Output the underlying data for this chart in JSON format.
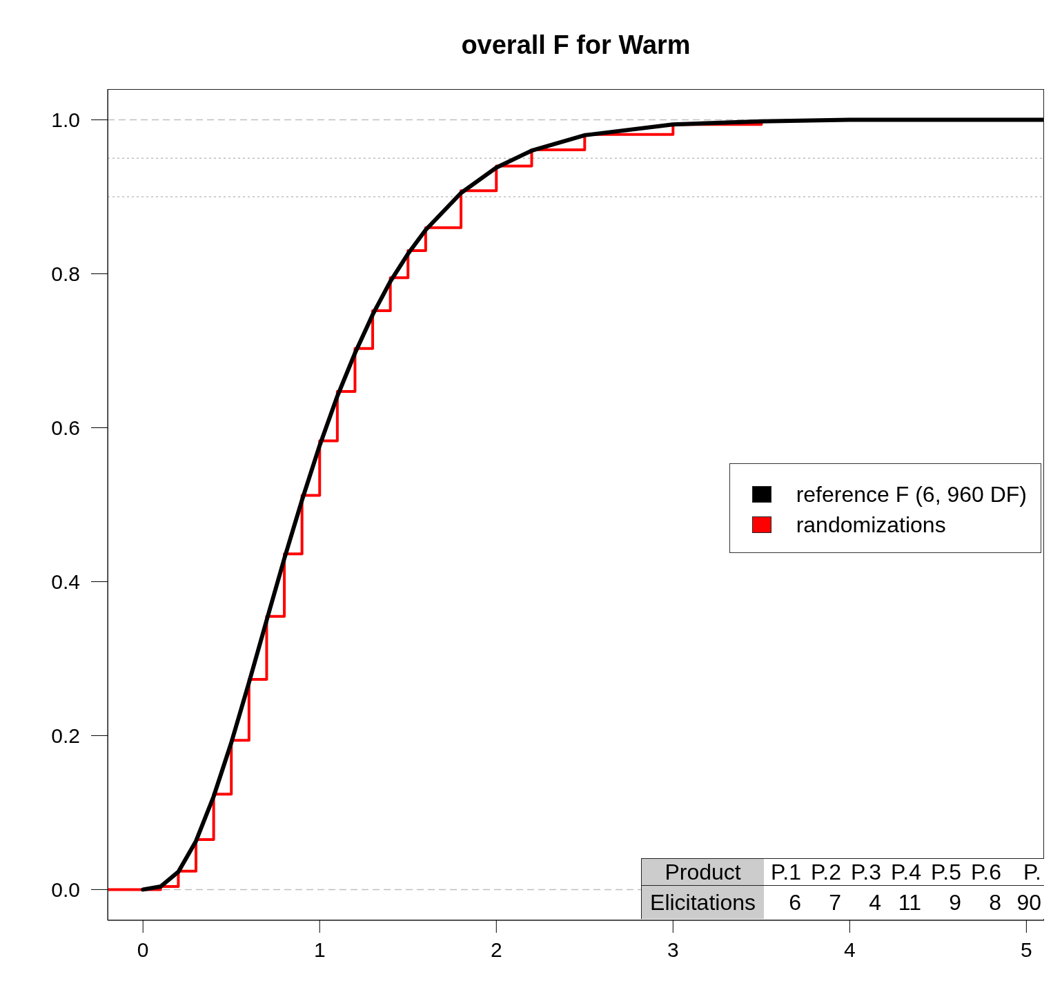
{
  "chart_data": {
    "type": "line",
    "title": "overall F for Warm",
    "xlim": [
      -0.2,
      5.1
    ],
    "xticks": [
      0,
      1,
      2,
      3,
      4,
      5
    ],
    "ylim": [
      -0.04,
      1.04
    ],
    "yticks": [
      {
        "value": 0,
        "label": "0.0"
      },
      {
        "value": 0.2,
        "label": "0.2"
      },
      {
        "value": 0.4,
        "label": "0.4"
      },
      {
        "value": 0.6,
        "label": "0.6"
      },
      {
        "value": 0.8,
        "label": "0.8"
      },
      {
        "value": 1,
        "label": "1.0"
      }
    ],
    "series": [
      {
        "name": "randomizations",
        "type": "step",
        "color": "#ff0000",
        "x": [
          -0.2,
          0,
          0.1,
          0.2,
          0.3,
          0.4,
          0.5,
          0.6,
          0.7,
          0.8,
          0.9,
          1.0,
          1.1,
          1.2,
          1.3,
          1.4,
          1.5,
          1.6,
          1.8,
          2.0,
          2.2,
          2.5,
          3.0,
          3.5
        ],
        "values": [
          0,
          0,
          0.004,
          0.024,
          0.065,
          0.124,
          0.194,
          0.273,
          0.355,
          0.436,
          0.512,
          0.583,
          0.647,
          0.703,
          0.752,
          0.795,
          0.83,
          0.86,
          0.908,
          0.94,
          0.961,
          0.981,
          0.994,
          0.998
        ]
      },
      {
        "name": "reference F (6, 960 DF)",
        "type": "line",
        "color": "#000000",
        "x": [
          0,
          0.1,
          0.2,
          0.3,
          0.4,
          0.5,
          0.6,
          0.7,
          0.8,
          0.9,
          1.0,
          1.1,
          1.2,
          1.3,
          1.4,
          1.5,
          1.6,
          1.8,
          2.0,
          2.2,
          2.5,
          3.0,
          3.5,
          4.0,
          5.1
        ],
        "values": [
          0,
          0.004,
          0.023,
          0.063,
          0.121,
          0.191,
          0.269,
          0.35,
          0.43,
          0.506,
          0.577,
          0.641,
          0.697,
          0.747,
          0.79,
          0.826,
          0.857,
          0.905,
          0.938,
          0.96,
          0.98,
          0.994,
          0.998,
          1.0,
          1.0
        ]
      }
    ],
    "ref_lines": [
      {
        "axis": "y",
        "value": 0,
        "color": "#bebebe",
        "line_style": "dashed"
      },
      {
        "axis": "y",
        "value": 1,
        "color": "#bebebe",
        "line_style": "dashed"
      },
      {
        "axis": "y",
        "value": 0.95,
        "color": "#bebebe",
        "line_style": "dotted"
      },
      {
        "axis": "y",
        "value": 0.9,
        "color": "#bebebe",
        "line_style": "dotted"
      }
    ],
    "legend": "right",
    "annotations": [
      "Product",
      "P.1",
      "P.2",
      "P.3",
      "P.4",
      "P.5",
      "P.6",
      "P.",
      "Elicitations",
      "6",
      "7",
      "4",
      "11",
      "9",
      "8",
      "90"
    ]
  }
}
